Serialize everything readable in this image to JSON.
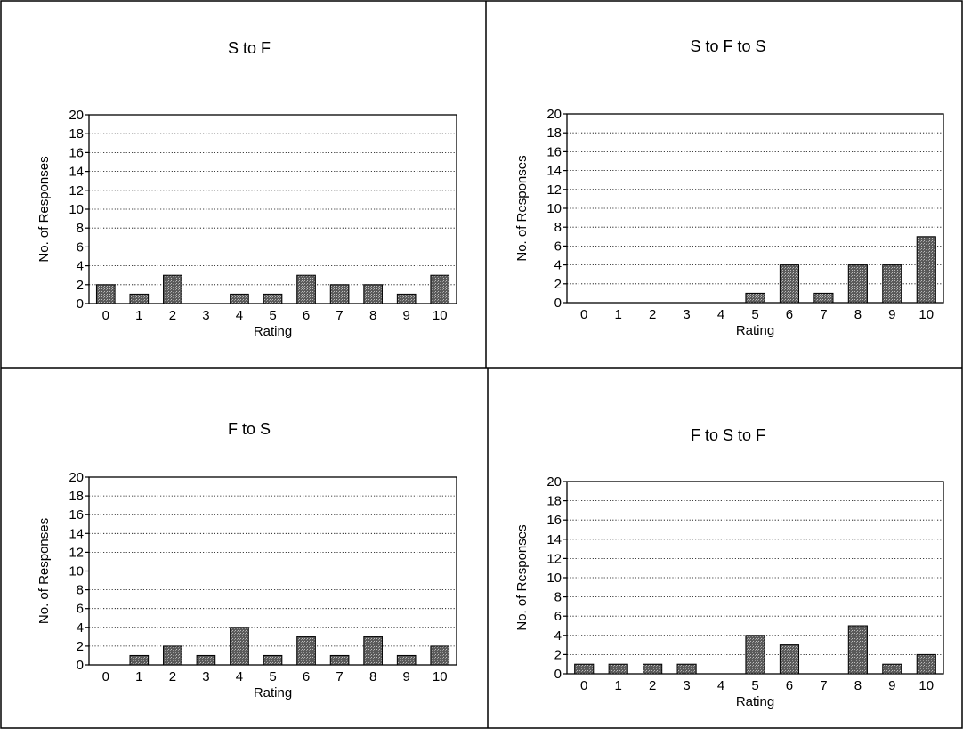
{
  "chart_data": [
    {
      "type": "bar",
      "title": "S to F",
      "xlabel": "Rating",
      "ylabel": "No. of Responses",
      "categories": [
        "0",
        "1",
        "2",
        "3",
        "4",
        "5",
        "6",
        "7",
        "8",
        "9",
        "10"
      ],
      "values": [
        2,
        1,
        3,
        0,
        1,
        1,
        3,
        2,
        2,
        1,
        3
      ],
      "ylim": [
        0,
        20
      ],
      "yticks": [
        0,
        2,
        4,
        6,
        8,
        10,
        12,
        14,
        16,
        18,
        20
      ],
      "grid": "horizontal dotted",
      "bar_color": "#4a4a4a"
    },
    {
      "type": "bar",
      "title": "S to F to S",
      "xlabel": "Rating",
      "ylabel": "No. of Responses",
      "categories": [
        "0",
        "1",
        "2",
        "3",
        "4",
        "5",
        "6",
        "7",
        "8",
        "9",
        "10"
      ],
      "values": [
        0,
        0,
        0,
        0,
        0,
        1,
        4,
        1,
        4,
        4,
        7
      ],
      "ylim": [
        0,
        20
      ],
      "yticks": [
        0,
        2,
        4,
        6,
        8,
        10,
        12,
        14,
        16,
        18,
        20
      ],
      "grid": "horizontal dotted",
      "bar_color": "#4a4a4a"
    },
    {
      "type": "bar",
      "title": "F to S",
      "xlabel": "Rating",
      "ylabel": "No. of Responses",
      "categories": [
        "0",
        "1",
        "2",
        "3",
        "4",
        "5",
        "6",
        "7",
        "8",
        "9",
        "10"
      ],
      "values": [
        0,
        1,
        2,
        1,
        4,
        1,
        3,
        1,
        3,
        1,
        2
      ],
      "ylim": [
        0,
        20
      ],
      "yticks": [
        0,
        2,
        4,
        6,
        8,
        10,
        12,
        14,
        16,
        18,
        20
      ],
      "grid": "horizontal dotted",
      "bar_color": "#4a4a4a"
    },
    {
      "type": "bar",
      "title": "F to S to F",
      "xlabel": "Rating",
      "ylabel": "No. of Responses",
      "categories": [
        "0",
        "1",
        "2",
        "3",
        "4",
        "5",
        "6",
        "7",
        "8",
        "9",
        "10"
      ],
      "values": [
        1,
        1,
        1,
        1,
        0,
        4,
        3,
        0,
        5,
        1,
        2
      ],
      "ylim": [
        0,
        20
      ],
      "yticks": [
        0,
        2,
        4,
        6,
        8,
        10,
        12,
        14,
        16,
        18,
        20
      ],
      "grid": "horizontal dotted",
      "bar_color": "#4a4a4a"
    }
  ]
}
